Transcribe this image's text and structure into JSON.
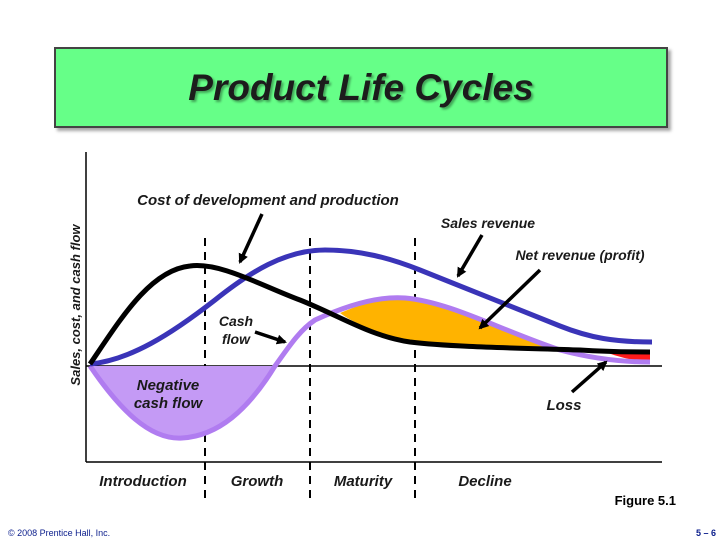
{
  "title": "Product Life Cycles",
  "y_axis_label": "Sales, cost, and cash flow",
  "stages": [
    "Introduction",
    "Growth",
    "Maturity",
    "Decline"
  ],
  "labels": {
    "cost": "Cost of development and production",
    "sales": "Sales revenue",
    "net": "Net revenue (profit)",
    "cash_line1": "Cash",
    "cash_line2": "flow",
    "negative_line1": "Negative",
    "negative_line2": "cash flow",
    "loss": "Loss"
  },
  "figure_label": "Figure 5.1",
  "footer": {
    "copyright": "© 2008 Prentice Hall, Inc.",
    "page": "5 – 6"
  },
  "colors": {
    "title_bg": "#66ff88",
    "sales_curve": "#3a34b8",
    "cash_curve": "#b07cf0",
    "negative_fill": "#c49af5",
    "profit_fill": "#ffb300",
    "loss_fill": "#ff1a1a",
    "cost_curve": "#000000",
    "footer_text": "#0b1e8c"
  }
}
